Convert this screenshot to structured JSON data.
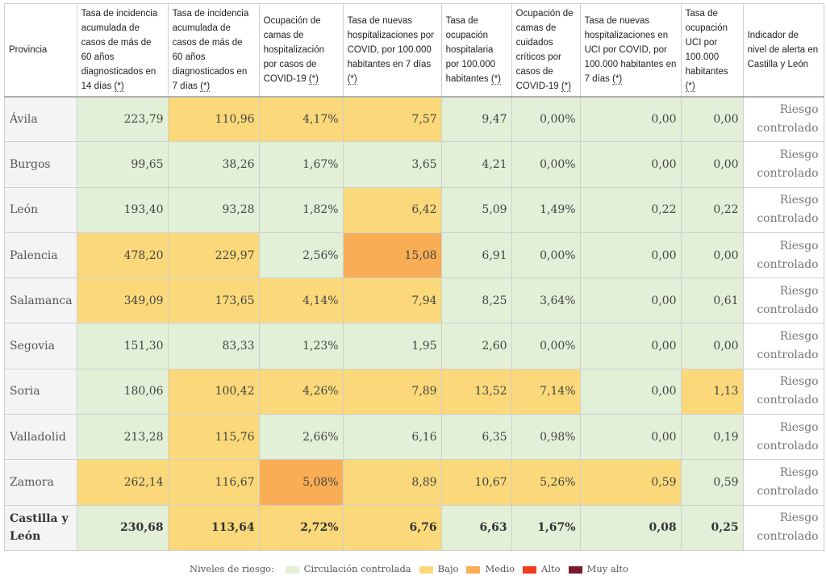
{
  "table": {
    "headers": [
      {
        "label": "Provincia",
        "ast": ""
      },
      {
        "label": "Tasa de incidencia acumulada de casos de más de 60 años diagnosticados en 14 días ",
        "ast": "(*)"
      },
      {
        "label": "Tasa de incidencia acumulada de casos de más de 60 años diagnosticados en 7 días ",
        "ast": "(*)"
      },
      {
        "label": "Ocupación de camas de hospitalización por casos de COVID-19 ",
        "ast": "(*)"
      },
      {
        "label": "Tasa de nuevas hospitalizaciones por COVID, por 100.000 habitantes en 7 días ",
        "ast": "(*)"
      },
      {
        "label": "Tasa de ocupación hospitalaria por 100.000 habitantes ",
        "ast": "(*)"
      },
      {
        "label": "Ocupación de camas de cuidados críticos por casos de COVID-19 ",
        "ast": "(*)"
      },
      {
        "label": "Tasa de nuevas hospitalizaciones en UCI por COVID, por 100.000 habitantes en 7 días ",
        "ast": "(*)"
      },
      {
        "label": "Tasa de ocupación UCI por 100.000 habitantes ",
        "ast": "(*)"
      },
      {
        "label": "Indicador de nivel de alerta en Castilla y León",
        "ast": ""
      }
    ],
    "rows": [
      {
        "province": "Ávila",
        "values": [
          "223,79",
          "110,96",
          "4,17%",
          "7,57",
          "9,47",
          "0,00%",
          "0,00",
          "0,00"
        ],
        "levels": [
          "g",
          "y",
          "y",
          "y",
          "g",
          "g",
          "g",
          "g"
        ],
        "alert": "Riesgo controlado"
      },
      {
        "province": "Burgos",
        "values": [
          "99,65",
          "38,26",
          "1,67%",
          "3,65",
          "4,21",
          "0,00%",
          "0,00",
          "0,00"
        ],
        "levels": [
          "g",
          "g",
          "g",
          "g",
          "g",
          "g",
          "g",
          "g"
        ],
        "alert": "Riesgo controlado"
      },
      {
        "province": "León",
        "values": [
          "193,40",
          "93,28",
          "1,82%",
          "6,42",
          "5,09",
          "1,49%",
          "0,22",
          "0,22"
        ],
        "levels": [
          "g",
          "g",
          "g",
          "y",
          "g",
          "g",
          "g",
          "g"
        ],
        "alert": "Riesgo controlado"
      },
      {
        "province": "Palencia",
        "values": [
          "478,20",
          "229,97",
          "2,56%",
          "15,08",
          "6,91",
          "0,00%",
          "0,00",
          "0,00"
        ],
        "levels": [
          "y",
          "y",
          "g",
          "o",
          "g",
          "g",
          "g",
          "g"
        ],
        "alert": "Riesgo controlado"
      },
      {
        "province": "Salamanca",
        "values": [
          "349,09",
          "173,65",
          "4,14%",
          "7,94",
          "8,25",
          "3,64%",
          "0,00",
          "0,61"
        ],
        "levels": [
          "y",
          "y",
          "y",
          "y",
          "g",
          "g",
          "g",
          "g"
        ],
        "alert": "Riesgo controlado"
      },
      {
        "province": "Segovia",
        "values": [
          "151,30",
          "83,33",
          "1,23%",
          "1,95",
          "2,60",
          "0,00%",
          "0,00",
          "0,00"
        ],
        "levels": [
          "g",
          "g",
          "g",
          "g",
          "g",
          "g",
          "g",
          "g"
        ],
        "alert": "Riesgo controlado"
      },
      {
        "province": "Soria",
        "values": [
          "180,06",
          "100,42",
          "4,26%",
          "7,89",
          "13,52",
          "7,14%",
          "0,00",
          "1,13"
        ],
        "levels": [
          "g",
          "y",
          "y",
          "y",
          "y",
          "y",
          "g",
          "y"
        ],
        "alert": "Riesgo controlado"
      },
      {
        "province": "Valladolid",
        "values": [
          "213,28",
          "115,76",
          "2,66%",
          "6,16",
          "6,35",
          "0,98%",
          "0,00",
          "0,19"
        ],
        "levels": [
          "g",
          "y",
          "g",
          "g",
          "g",
          "g",
          "g",
          "g"
        ],
        "alert": "Riesgo controlado"
      },
      {
        "province": "Zamora",
        "values": [
          "262,14",
          "116,67",
          "5,08%",
          "8,89",
          "10,67",
          "5,26%",
          "0,59",
          "0,59"
        ],
        "levels": [
          "y",
          "y",
          "o",
          "y",
          "y",
          "y",
          "y",
          "g"
        ],
        "alert": "Riesgo controlado"
      }
    ],
    "total": {
      "province": "Castilla y León",
      "values": [
        "230,68",
        "113,64",
        "2,72%",
        "6,76",
        "6,63",
        "1,67%",
        "0,08",
        "0,25"
      ],
      "levels": [
        "g",
        "y",
        "y",
        "y",
        "g",
        "g",
        "g",
        "g"
      ],
      "alert": "Riesgo controlado"
    }
  },
  "legend": {
    "title": "Niveles de riesgo:",
    "items": [
      {
        "label": "Circulación controlada",
        "color": "#e1f0d7"
      },
      {
        "label": "Bajo",
        "color": "#fbd97a"
      },
      {
        "label": "Medio",
        "color": "#f9ad55"
      },
      {
        "label": "Alto",
        "color": "#f03c1e"
      },
      {
        "label": "Muy alto",
        "color": "#7a1a2e"
      }
    ]
  }
}
